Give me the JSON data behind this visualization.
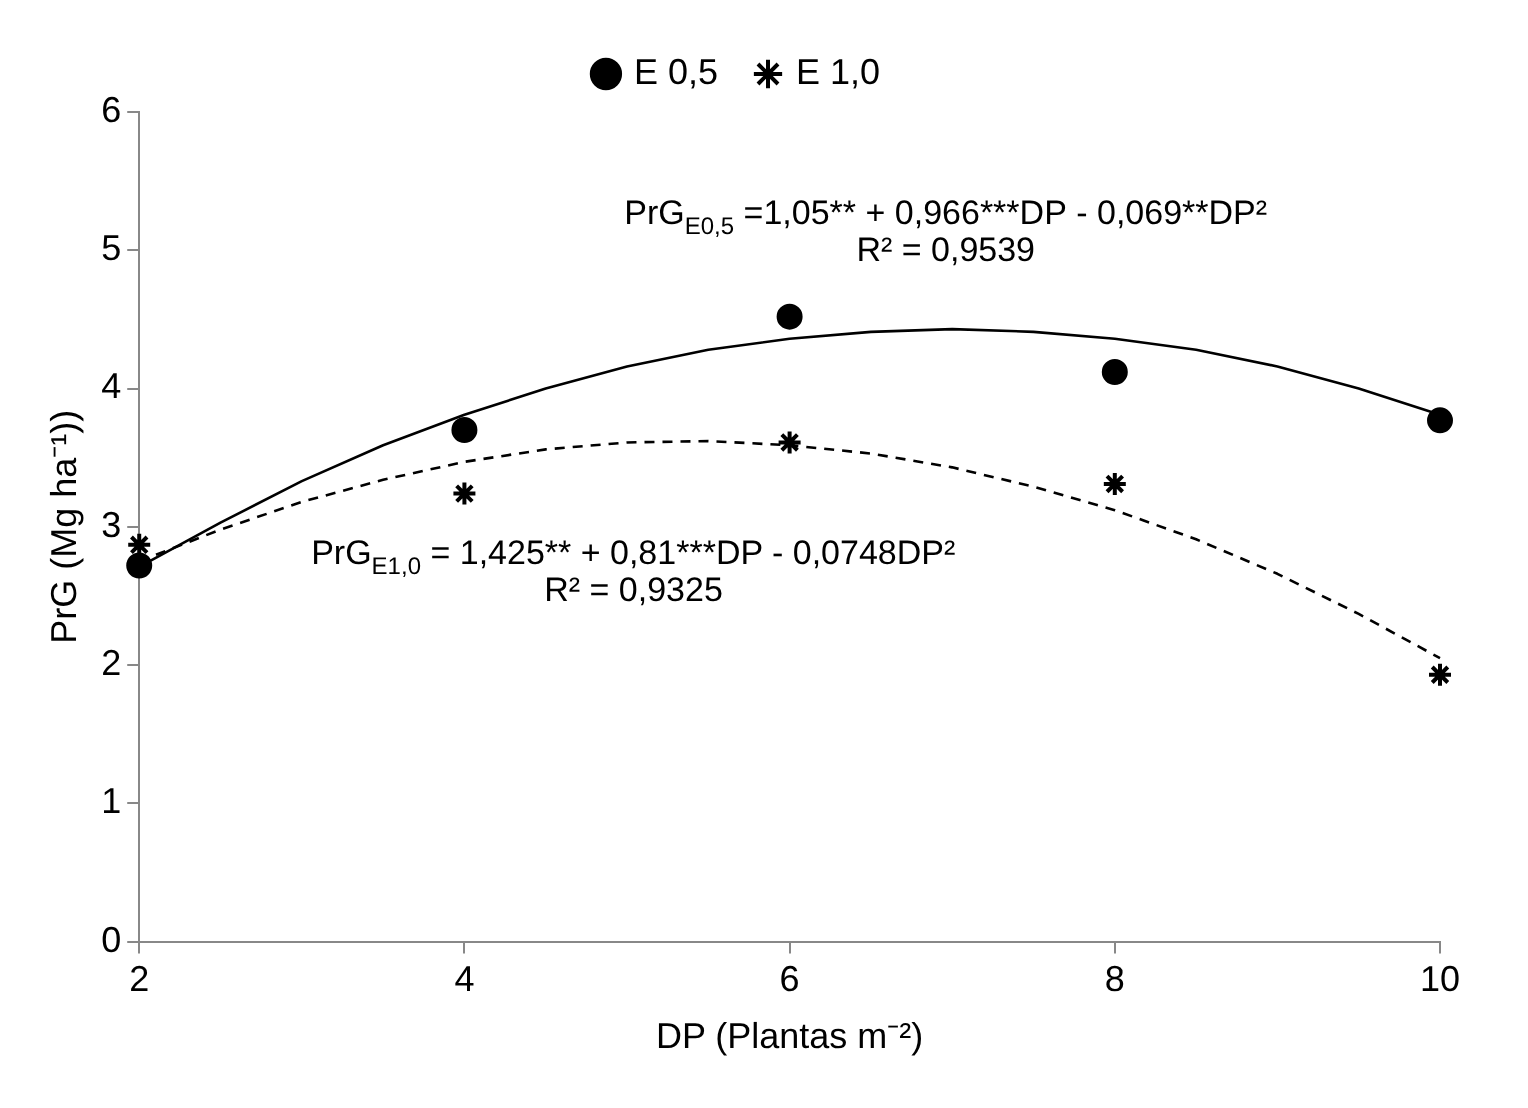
{
  "chart_data": {
    "type": "scatter",
    "xlabel": "DP (Plantas m⁻²)",
    "ylabel": "PrG (Mg ha⁻¹))",
    "xlim": [
      2,
      10
    ],
    "xticks": [
      2,
      4,
      6,
      8,
      10
    ],
    "ylim": [
      0,
      6
    ],
    "yticks": [
      0,
      1,
      2,
      3,
      4,
      5,
      6
    ],
    "grid": false,
    "legend": "top",
    "series": [
      {
        "name": "E 0,5",
        "type": "scatter",
        "marker": "circle",
        "color": "#000000",
        "x": [
          2,
          4,
          6,
          8,
          10
        ],
        "values": [
          2.72,
          3.7,
          4.52,
          4.12,
          3.77
        ]
      },
      {
        "name": "E 1,0",
        "type": "scatter",
        "marker": "cross",
        "color": "#000000",
        "x": [
          2,
          4,
          6,
          8,
          10
        ],
        "values": [
          2.87,
          3.24,
          3.61,
          3.31,
          1.93
        ]
      },
      {
        "type": "line",
        "line_style": "solid",
        "marker": "none",
        "color": "#000000",
        "x": [
          2,
          2.5,
          3,
          3.5,
          4,
          4.5,
          5,
          5.5,
          6,
          6.5,
          7,
          7.5,
          8,
          8.5,
          9,
          9.5,
          10
        ],
        "values": [
          2.71,
          3.03,
          3.33,
          3.59,
          3.81,
          4.0,
          4.16,
          4.28,
          4.36,
          4.41,
          4.43,
          4.41,
          4.36,
          4.28,
          4.16,
          4.0,
          3.81
        ]
      },
      {
        "type": "line",
        "line_style": "dashed",
        "marker": "none",
        "color": "#000000",
        "x": [
          2,
          2.5,
          3,
          3.5,
          4,
          4.5,
          5,
          5.5,
          6,
          6.5,
          7,
          7.5,
          8,
          8.5,
          9,
          9.5,
          10
        ],
        "values": [
          2.75,
          2.98,
          3.18,
          3.34,
          3.47,
          3.56,
          3.61,
          3.62,
          3.59,
          3.53,
          3.43,
          3.29,
          3.12,
          2.91,
          2.66,
          2.37,
          2.05
        ]
      }
    ],
    "annotations": [
      "PrG$_{E0,5}$ =1,05**",
      "+ 0,966***DP",
      "- 0,069**DP²",
      "R² = 0,9539",
      "PrG$_{E1,0}$ = 1,425**",
      "+ 0,81***DP - 0,0748DP²",
      "R² = 0,9325"
    ]
  }
}
